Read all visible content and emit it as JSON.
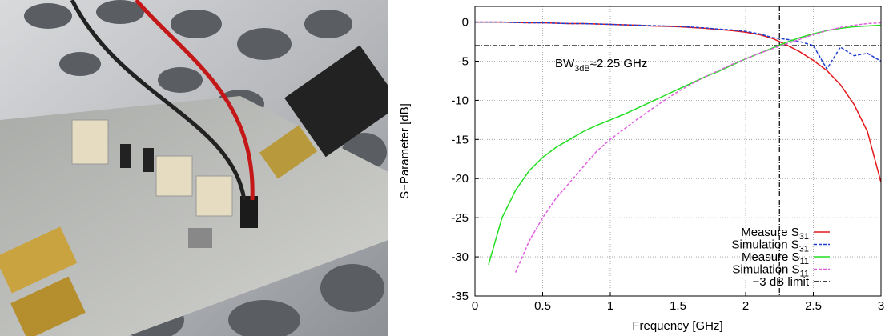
{
  "chart_data": {
    "type": "line",
    "x_label": "Frequency [GHz]",
    "y_label": "S−Parameter [dB]",
    "xlim": [
      0,
      3
    ],
    "ylim": [
      -35,
      2
    ],
    "xticks": [
      0,
      0.5,
      1,
      1.5,
      2,
      2.5,
      3
    ],
    "yticks": [
      0,
      -5,
      -10,
      -15,
      -20,
      -25,
      -30,
      -35
    ],
    "grid": true,
    "legend_position": "lower right",
    "x": [
      0,
      0.1,
      0.2,
      0.3,
      0.4,
      0.5,
      0.6,
      0.7,
      0.8,
      0.9,
      1.0,
      1.1,
      1.2,
      1.3,
      1.4,
      1.5,
      1.6,
      1.7,
      1.8,
      1.9,
      2.0,
      2.1,
      2.2,
      2.3,
      2.4,
      2.5,
      2.6,
      2.7,
      2.8,
      2.9,
      3.0
    ],
    "series": [
      {
        "name": "Measure S",
        "name_sub": "31",
        "color": "#e41a1c",
        "style": "solid",
        "values": [
          0,
          0,
          0,
          -0.05,
          -0.1,
          -0.1,
          -0.15,
          -0.2,
          -0.2,
          -0.25,
          -0.3,
          -0.35,
          -0.4,
          -0.5,
          -0.55,
          -0.6,
          -0.7,
          -0.8,
          -0.95,
          -1.1,
          -1.3,
          -1.6,
          -2.1,
          -2.9,
          -3.8,
          -4.9,
          -6.2,
          -8,
          -10.5,
          -14,
          -20.5
        ]
      },
      {
        "name": "Simulation S",
        "name_sub": "31",
        "color": "#1f3fd0",
        "style": "dashed",
        "values": [
          0,
          0,
          0,
          -0.05,
          -0.1,
          -0.1,
          -0.15,
          -0.2,
          -0.2,
          -0.25,
          -0.3,
          -0.35,
          -0.4,
          -0.45,
          -0.5,
          -0.55,
          -0.65,
          -0.75,
          -0.9,
          -1.0,
          -1.2,
          -1.5,
          -2.0,
          -2.2,
          -2.5,
          -3,
          -6,
          -3.2,
          -4.3,
          -4,
          -5
        ]
      },
      {
        "name": "Measure S",
        "name_sub": "11",
        "color": "#22dd22",
        "style": "solid",
        "values": [
          null,
          -31,
          -25,
          -21.5,
          -19,
          -17.3,
          -16,
          -15,
          -14,
          -13.2,
          -12.5,
          -11.8,
          -11,
          -10.2,
          -9.4,
          -8.6,
          -7.8,
          -7,
          -6.3,
          -5.5,
          -4.7,
          -4,
          -3.3,
          -2.6,
          -2,
          -1.5,
          -1.1,
          -0.8,
          -0.6,
          -0.5,
          -0.4
        ]
      },
      {
        "name": "Simulation S",
        "name_sub": "11",
        "color": "#e060e0",
        "style": "dashed",
        "values": [
          null,
          null,
          null,
          -32,
          -28,
          -25,
          -22.5,
          -20.5,
          -18.5,
          -16.5,
          -15,
          -13.7,
          -12.4,
          -11.2,
          -10,
          -8.9,
          -7.9,
          -7,
          -6.2,
          -5.4,
          -4.7,
          -4,
          -3.4,
          -2.8,
          -2.2,
          -1.6,
          -1.1,
          -0.7,
          -0.4,
          -0.2,
          -0.1
        ]
      }
    ],
    "limit": {
      "name": "−3 dB limit",
      "color": "#000000",
      "style": "dashdot",
      "y": -3,
      "x": 2.25
    },
    "annotation": {
      "text": "BW",
      "sub": "3dB",
      "rest": "≈2.25 GHz"
    }
  }
}
